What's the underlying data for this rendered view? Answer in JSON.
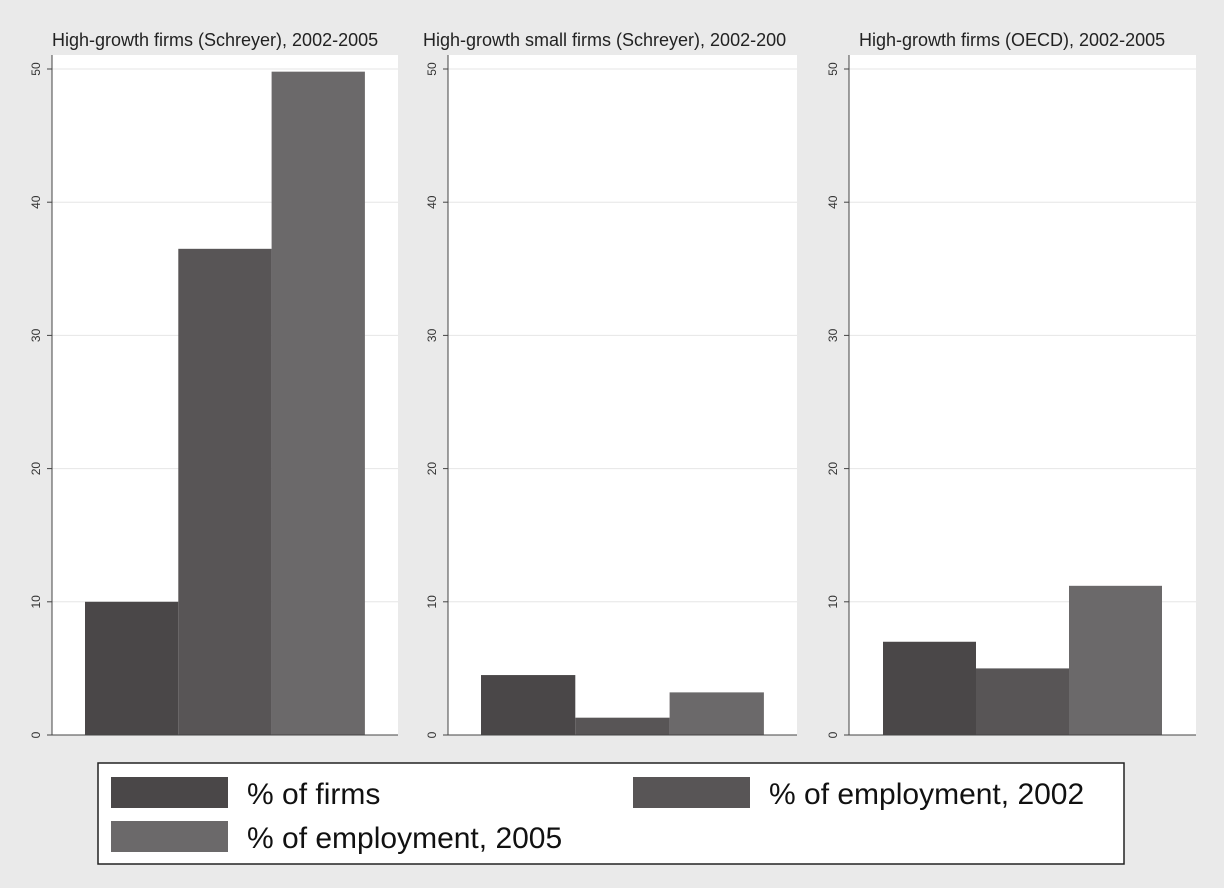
{
  "chart_data": [
    {
      "type": "bar",
      "title": "High-growth firms (Schreyer), 2002-2005",
      "categories": [
        "% of firms",
        "% of employment, 2002",
        "% of employment, 2005"
      ],
      "values": [
        10.0,
        36.5,
        49.8
      ],
      "ylim": [
        0,
        50
      ],
      "yticks": [
        "0",
        "10",
        "20",
        "30",
        "40",
        "50"
      ],
      "grid": true
    },
    {
      "type": "bar",
      "title": "High-growth small firms (Schreyer), 2002-200",
      "categories": [
        "% of firms",
        "% of employment, 2002",
        "% of employment, 2005"
      ],
      "values": [
        4.5,
        1.3,
        3.2
      ],
      "ylim": [
        0,
        50
      ],
      "yticks": [
        "0",
        "10",
        "20",
        "30",
        "40",
        "50"
      ],
      "grid": true
    },
    {
      "type": "bar",
      "title": "High-growth firms (OECD), 2002-2005",
      "categories": [
        "% of firms",
        "% of employment, 2002",
        "% of employment, 2005"
      ],
      "values": [
        7.0,
        5.0,
        11.2
      ],
      "ylim": [
        0,
        50
      ],
      "yticks": [
        "0",
        "10",
        "20",
        "30",
        "40",
        "50"
      ],
      "grid": true
    }
  ],
  "legend": {
    "placement": "bottom",
    "entries": [
      {
        "label": "% of firms",
        "color": "#4a4748"
      },
      {
        "label": "% of employment, 2002",
        "color": "#585556"
      },
      {
        "label": "% of employment, 2005",
        "color": "#6b696a"
      }
    ]
  },
  "colors": {
    "background": "#eaeaea",
    "plot_background": "#ffffff",
    "bar_firms": "#4a4748",
    "bar_emp_2002": "#585556",
    "bar_emp_2005": "#6b696a"
  }
}
